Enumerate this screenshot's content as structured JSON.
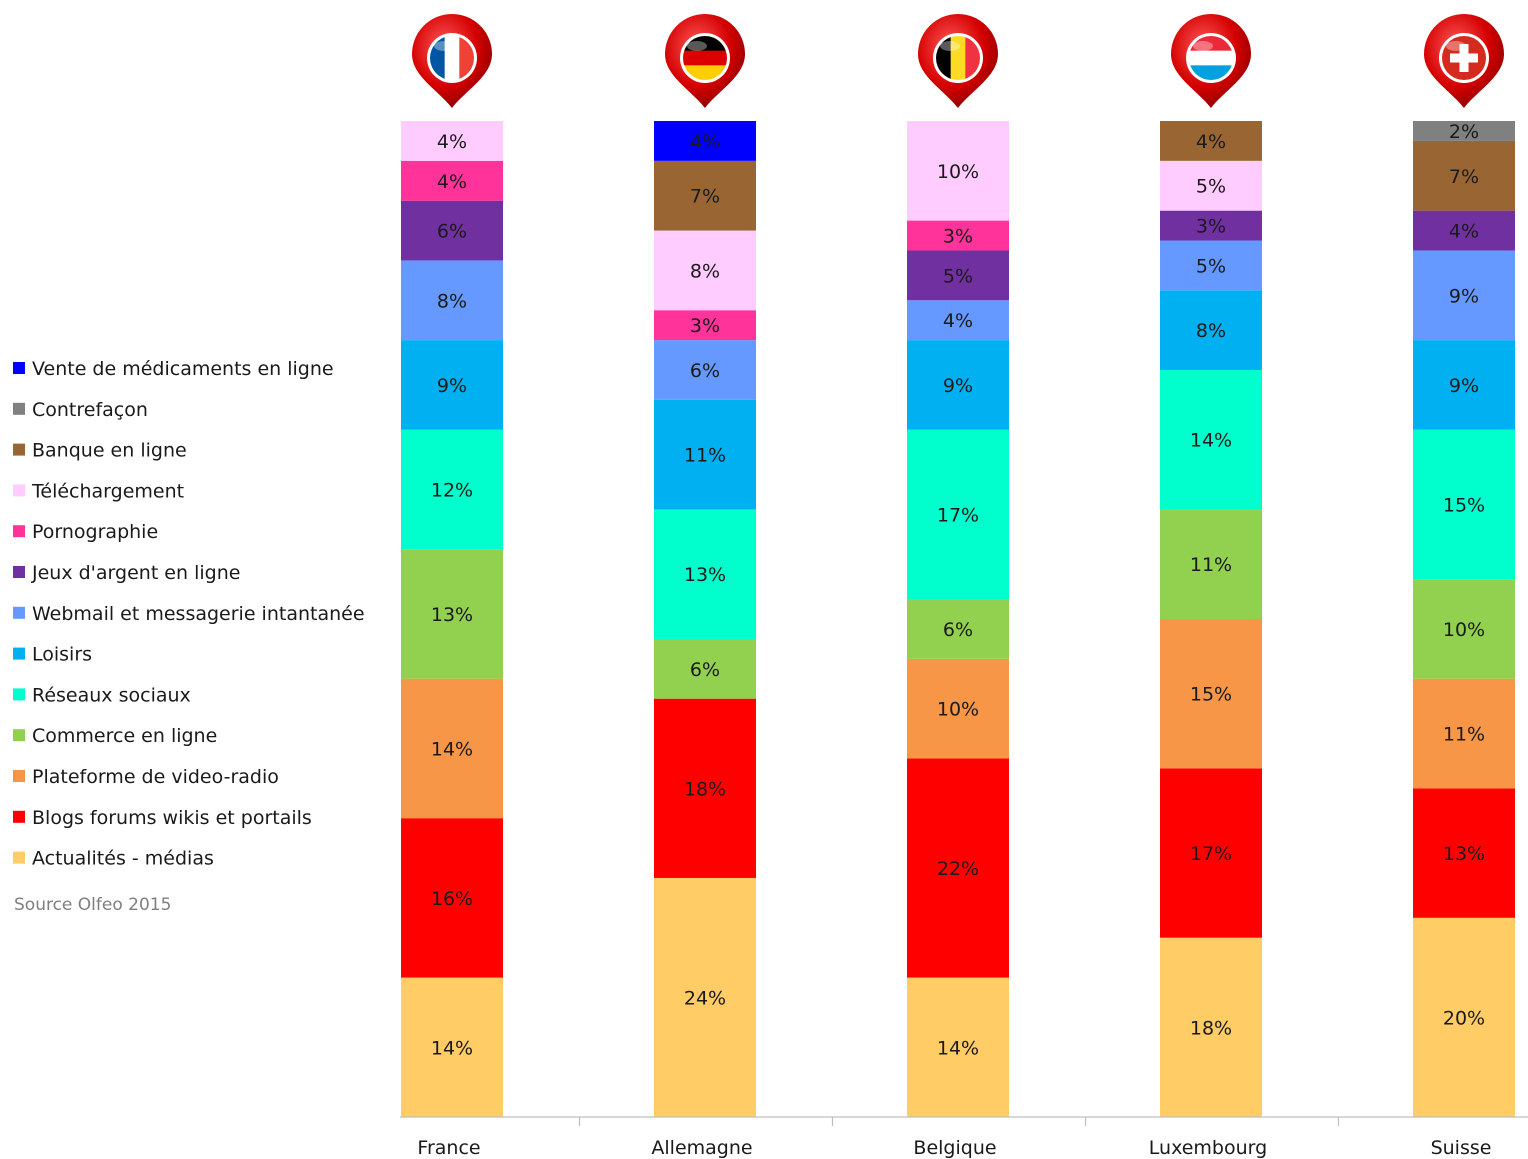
{
  "chart_data": {
    "type": "bar",
    "stacked": true,
    "categories": [
      "France",
      "Allemagne",
      "Belgique",
      "Luxembourg",
      "Suisse"
    ],
    "flag_icons": [
      "france-flag-pin-icon",
      "germany-flag-pin-icon",
      "belgium-flag-pin-icon",
      "luxembourg-flag-pin-icon",
      "switzerland-flag-pin-icon"
    ],
    "series": [
      {
        "name": "Actualités - médias",
        "color": "#FFCC66",
        "values": [
          14,
          24,
          14,
          18,
          20
        ]
      },
      {
        "name": "Blogs forums wikis et portails",
        "color": "#FF0000",
        "values": [
          16,
          18,
          22,
          17,
          13
        ]
      },
      {
        "name": "Plateforme de video-radio",
        "color": "#F79646",
        "values": [
          14,
          0,
          10,
          15,
          11
        ]
      },
      {
        "name": "Commerce en ligne",
        "color": "#92D050",
        "values": [
          13,
          6,
          6,
          11,
          10
        ]
      },
      {
        "name": "Réseaux sociaux",
        "color": "#00FFCC",
        "values": [
          12,
          13,
          17,
          14,
          15
        ]
      },
      {
        "name": "Loisirs",
        "color": "#00B0F0",
        "values": [
          9,
          11,
          9,
          8,
          9
        ]
      },
      {
        "name": "Webmail et messagerie intantanée",
        "color": "#6699FF",
        "values": [
          8,
          6,
          4,
          5,
          9
        ]
      },
      {
        "name": "Jeux d'argent en ligne",
        "color": "#7030A0",
        "values": [
          6,
          0,
          5,
          3,
          4
        ]
      },
      {
        "name": "Pornographie",
        "color": "#FF3399",
        "values": [
          4,
          3,
          3,
          0,
          0
        ]
      },
      {
        "name": "Téléchargement",
        "color": "#FFCCFF",
        "values": [
          4,
          8,
          10,
          5,
          0
        ]
      },
      {
        "name": "Banque en ligne",
        "color": "#996633",
        "values": [
          0,
          7,
          0,
          4,
          7
        ]
      },
      {
        "name": "Contrefaçon",
        "color": "#808080",
        "values": [
          0,
          0,
          0,
          0,
          2
        ]
      },
      {
        "name": "Vente de médicaments en ligne",
        "color": "#0000FF",
        "values": [
          0,
          4,
          0,
          0,
          0
        ]
      }
    ],
    "legend_order": [
      12,
      11,
      10,
      9,
      8,
      7,
      6,
      5,
      4,
      3,
      2,
      1,
      0
    ],
    "legend_position": "left",
    "value_suffix": "%",
    "ylim": [
      0,
      100
    ],
    "grid": false,
    "source": "Source Olfeo 2015"
  }
}
